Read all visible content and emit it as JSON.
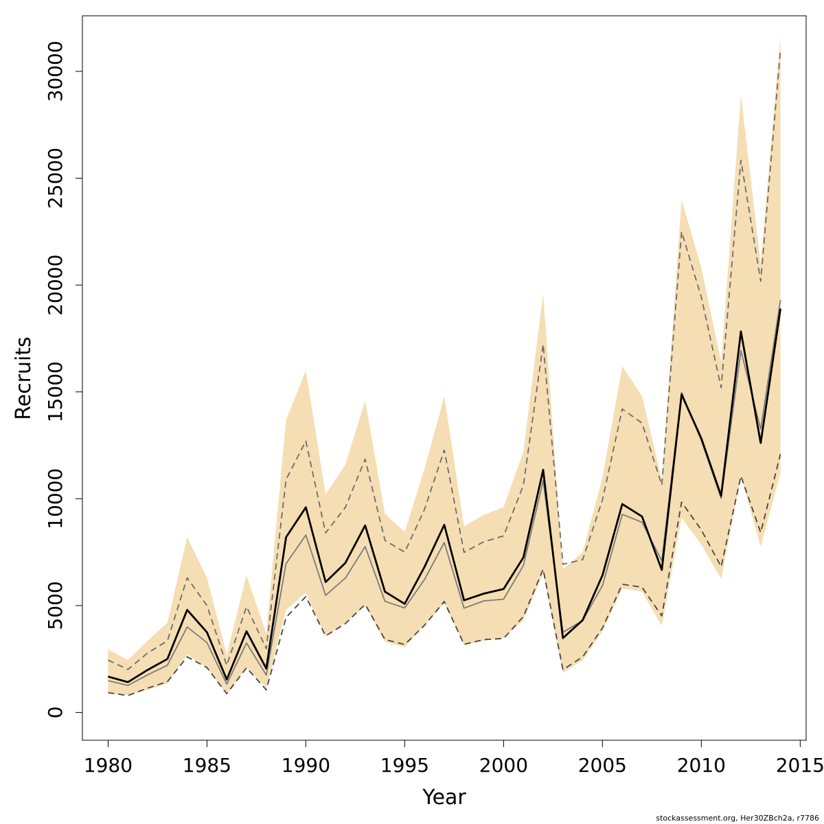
{
  "chart_data": {
    "type": "line",
    "xlabel": "Year",
    "ylabel": "Recruits",
    "xlim": [
      1978.7,
      2015.3
    ],
    "ylim": [
      -1300,
      32600
    ],
    "x_ticks": [
      1980,
      1985,
      1990,
      1995,
      2000,
      2005,
      2010,
      2015
    ],
    "y_ticks": [
      0,
      5000,
      10000,
      15000,
      20000,
      25000,
      30000
    ],
    "x_tick_labels": [
      "1980",
      "1985",
      "1990",
      "1995",
      "2000",
      "2005",
      "2010",
      "2015"
    ],
    "y_tick_labels": [
      "0",
      "5000",
      "10000",
      "15000",
      "20000",
      "25000",
      "30000"
    ],
    "x": [
      1980,
      1981,
      1982,
      1983,
      1984,
      1985,
      1986,
      1987,
      1988,
      1989,
      1990,
      1991,
      1992,
      1993,
      1994,
      1995,
      1996,
      1997,
      1998,
      1999,
      2000,
      2001,
      2002,
      2003,
      2004,
      2005,
      2006,
      2007,
      2008,
      2009,
      2010,
      2011,
      2012,
      2013,
      2014
    ],
    "band_upper": [
      2950,
      2450,
      3350,
      4200,
      8200,
      6300,
      2700,
      6400,
      3700,
      13700,
      16000,
      10200,
      11600,
      14600,
      9300,
      8450,
      11400,
      14800,
      8700,
      9250,
      9600,
      12200,
      19600,
      6700,
      7500,
      11000,
      16200,
      14800,
      10900,
      24000,
      20800,
      16400,
      28900,
      21000,
      31700
    ],
    "band_lower": [
      900,
      800,
      1050,
      1350,
      2700,
      2100,
      850,
      2100,
      1150,
      4800,
      5600,
      3550,
      4200,
      5000,
      3300,
      3050,
      4100,
      5100,
      3150,
      3350,
      3500,
      4300,
      6500,
      1850,
      2450,
      3800,
      5800,
      5650,
      4050,
      9100,
      7850,
      6250,
      11050,
      7750,
      11200
    ],
    "series": [
      {
        "name": "",
        "style": "thick-solid",
        "color": "#000000",
        "values": [
          1680,
          1420,
          1990,
          2500,
          4800,
          3750,
          1540,
          3800,
          2050,
          8200,
          9600,
          6100,
          7000,
          8750,
          5650,
          5080,
          6810,
          8780,
          5250,
          5560,
          5780,
          7250,
          11350,
          3480,
          4320,
          6420,
          9750,
          9170,
          6670,
          14880,
          12820,
          10140,
          17830,
          12610,
          18900
        ]
      },
      {
        "name": "",
        "style": "thin-solid",
        "color": "#7a7a7a",
        "values": [
          1490,
          1260,
          1760,
          2210,
          4000,
          3270,
          1330,
          3250,
          1750,
          6960,
          8300,
          5480,
          6290,
          7760,
          5200,
          4890,
          6220,
          7950,
          4880,
          5220,
          5300,
          6870,
          10850,
          3750,
          4300,
          5940,
          9270,
          8900,
          7100,
          14980,
          12720,
          10020,
          16930,
          13260,
          19300
        ]
      },
      {
        "name": "",
        "style": "dashed-upper",
        "color": "#6b6b6b",
        "values": [
          2450,
          2010,
          2780,
          3350,
          6300,
          5000,
          2200,
          4950,
          2980,
          10900,
          12700,
          8400,
          9600,
          11850,
          8050,
          7500,
          9500,
          12280,
          7490,
          7990,
          8260,
          10630,
          17230,
          6930,
          7150,
          9950,
          14200,
          13540,
          10640,
          22500,
          19430,
          15200,
          25840,
          20180,
          30990
        ]
      },
      {
        "name": "",
        "style": "dashed-lower",
        "color": "#444444",
        "values": [
          930,
          790,
          1140,
          1440,
          2600,
          2100,
          880,
          2090,
          1060,
          4450,
          5420,
          3580,
          4160,
          5060,
          3410,
          3180,
          4080,
          5190,
          3190,
          3410,
          3460,
          4490,
          6700,
          2000,
          2600,
          3950,
          6000,
          5860,
          4520,
          9840,
          8540,
          6820,
          11060,
          8420,
          12090
        ]
      }
    ],
    "colors": {
      "band": "#f5deb3",
      "axis": "#000000"
    },
    "grid": false,
    "legend": "none"
  },
  "footer": "stockassessment.org, Her30ZBch2a, r7786"
}
